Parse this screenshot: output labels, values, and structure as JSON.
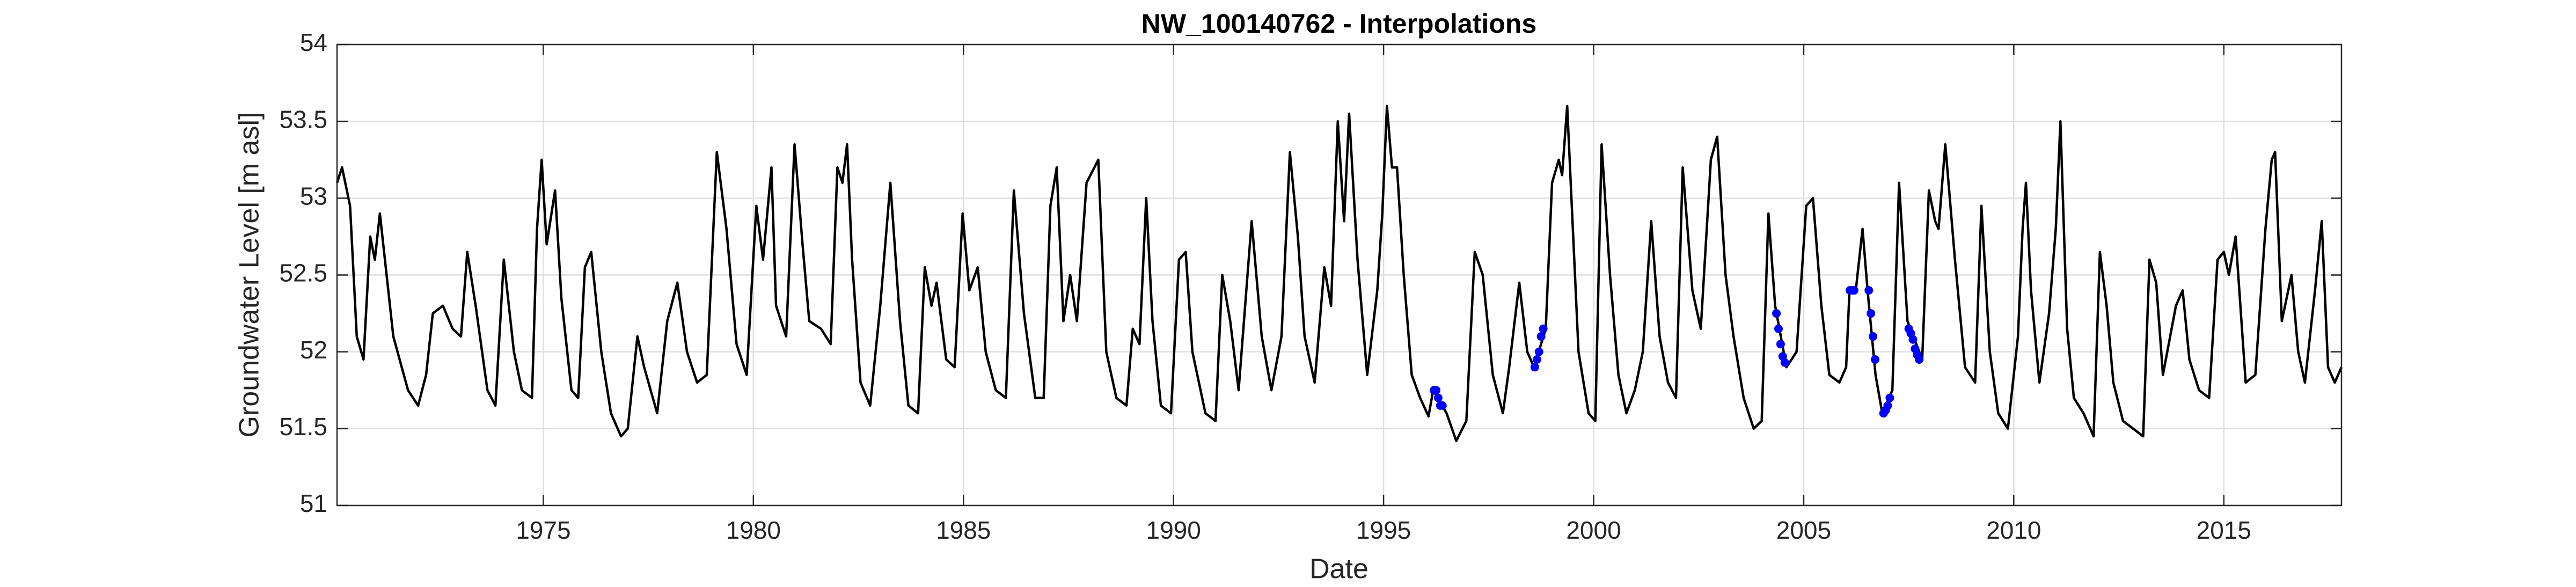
{
  "chart_data": {
    "type": "line",
    "title": "NW_100140762 - Interpolations",
    "xlabel": "Date",
    "ylabel": "Groundwater Level [m asl]",
    "xlim": [
      1970.09,
      2017.8
    ],
    "xticks": [
      1975,
      1980,
      1985,
      1990,
      1995,
      2000,
      2005,
      2010,
      2015
    ],
    "ylim": [
      51,
      54
    ],
    "yticks": [
      51,
      51.5,
      52,
      52.5,
      53,
      53.5,
      54
    ],
    "grid": true,
    "series": [
      {
        "color": "#000000",
        "marker": "none",
        "x": [
          1970.09,
          1970.21,
          1970.4,
          1970.56,
          1970.72,
          1970.88,
          1970.99,
          1971.11,
          1971.43,
          1971.78,
          1972.02,
          1972.21,
          1972.37,
          1972.61,
          1972.84,
          1973.04,
          1973.19,
          1973.39,
          1973.67,
          1973.86,
          1974.06,
          1974.3,
          1974.49,
          1974.73,
          1974.85,
          1974.96,
          1975.08,
          1975.28,
          1975.43,
          1975.67,
          1975.83,
          1975.99,
          1976.14,
          1976.38,
          1976.61,
          1976.85,
          1977.01,
          1977.24,
          1977.4,
          1977.71,
          1977.95,
          1978.19,
          1978.42,
          1978.66,
          1978.89,
          1979.13,
          1979.36,
          1979.6,
          1979.84,
          1980.07,
          1980.23,
          1980.43,
          1980.54,
          1980.78,
          1980.98,
          1981.17,
          1981.33,
          1981.61,
          1981.84,
          1982.0,
          1982.12,
          1982.23,
          1982.35,
          1982.55,
          1982.78,
          1983.02,
          1983.26,
          1983.49,
          1983.69,
          1983.92,
          1984.08,
          1984.24,
          1984.36,
          1984.59,
          1984.79,
          1984.98,
          1985.14,
          1985.34,
          1985.53,
          1985.77,
          1986.01,
          1986.2,
          1986.44,
          1986.71,
          1986.91,
          1987.07,
          1987.22,
          1987.38,
          1987.54,
          1987.7,
          1987.93,
          1988.21,
          1988.4,
          1988.64,
          1988.88,
          1989.03,
          1989.19,
          1989.35,
          1989.5,
          1989.7,
          1989.94,
          1990.13,
          1990.29,
          1990.45,
          1990.76,
          1991.0,
          1991.16,
          1991.35,
          1991.55,
          1991.86,
          1992.1,
          1992.33,
          1992.57,
          1992.77,
          1992.96,
          1993.12,
          1993.36,
          1993.59,
          1993.75,
          1993.91,
          1994.06,
          1994.18,
          1994.38,
          1994.61,
          1994.85,
          1994.97,
          1995.08,
          1995.2,
          1995.32,
          1995.48,
          1995.67,
          1995.87,
          1996.07,
          1996.18,
          1996.5,
          1996.73,
          1996.97,
          1997.17,
          1997.36,
          1997.6,
          1997.84,
          1997.99,
          1998.23,
          1998.42,
          1998.58,
          1998.86,
          1999.01,
          1999.17,
          1999.25,
          1999.37,
          1999.48,
          1999.64,
          1999.88,
          2000.04,
          2000.19,
          2000.39,
          2000.59,
          2000.78,
          2000.98,
          2001.17,
          2001.37,
          2001.57,
          2001.77,
          2001.96,
          2002.12,
          2002.35,
          2002.55,
          2002.79,
          2002.94,
          2003.14,
          2003.33,
          2003.57,
          2003.81,
          2004.0,
          2004.16,
          2004.32,
          2004.59,
          2004.83,
          2005.06,
          2005.22,
          2005.42,
          2005.61,
          2005.85,
          2006.01,
          2006.09,
          2006.24,
          2006.4,
          2006.52,
          2006.71,
          2006.87,
          2007.11,
          2007.27,
          2007.47,
          2007.82,
          2007.98,
          2008.13,
          2008.21,
          2008.37,
          2008.6,
          2008.84,
          2009.08,
          2009.23,
          2009.43,
          2009.63,
          2009.86,
          2010.1,
          2010.21,
          2010.29,
          2010.41,
          2010.61,
          2010.84,
          2011.0,
          2011.11,
          2011.27,
          2011.43,
          2011.66,
          2011.9,
          2012.05,
          2012.21,
          2012.37,
          2012.6,
          2012.84,
          2013.08,
          2013.23,
          2013.39,
          2013.55,
          2013.86,
          2014.02,
          2014.18,
          2014.41,
          2014.65,
          2014.85,
          2015.0,
          2015.12,
          2015.28,
          2015.52,
          2015.75,
          2015.99,
          2016.14,
          2016.22,
          2016.38,
          2016.61,
          2016.77,
          2016.93,
          2017.17,
          2017.33,
          2017.48,
          2017.64,
          2017.8
        ],
        "values": [
          53.1,
          53.2,
          52.95,
          52.1,
          51.95,
          52.75,
          52.6,
          52.9,
          52.1,
          51.75,
          51.65,
          51.85,
          52.25,
          52.3,
          52.15,
          52.1,
          52.65,
          52.3,
          51.75,
          51.65,
          52.6,
          52.0,
          51.75,
          51.7,
          52.8,
          53.25,
          52.7,
          53.05,
          52.35,
          51.75,
          51.7,
          52.55,
          52.65,
          52.0,
          51.6,
          51.45,
          51.5,
          52.1,
          51.9,
          51.6,
          52.2,
          52.45,
          52.0,
          51.8,
          51.85,
          53.3,
          52.8,
          52.05,
          51.85,
          52.95,
          52.6,
          53.2,
          52.3,
          52.1,
          53.35,
          52.7,
          52.2,
          52.15,
          52.05,
          53.2,
          53.1,
          53.35,
          52.6,
          51.8,
          51.65,
          52.3,
          53.1,
          52.2,
          51.65,
          51.6,
          52.55,
          52.3,
          52.45,
          51.95,
          51.9,
          52.9,
          52.4,
          52.55,
          52.0,
          51.75,
          51.7,
          53.05,
          52.25,
          51.7,
          51.7,
          52.95,
          53.2,
          52.2,
          52.5,
          52.2,
          53.1,
          53.25,
          52.0,
          51.7,
          51.65,
          52.15,
          52.05,
          53.0,
          52.2,
          51.65,
          51.6,
          52.6,
          52.65,
          52.0,
          51.6,
          51.55,
          52.5,
          52.2,
          51.75,
          52.85,
          52.1,
          51.75,
          52.1,
          53.3,
          52.75,
          52.1,
          51.8,
          52.55,
          52.3,
          53.5,
          52.85,
          53.55,
          52.6,
          51.85,
          52.4,
          52.9,
          53.6,
          53.2,
          53.2,
          52.5,
          51.85,
          51.7,
          51.58,
          51.75,
          51.6,
          51.42,
          51.55,
          52.65,
          52.5,
          51.85,
          51.6,
          51.9,
          52.45,
          52.0,
          51.9,
          52.15,
          53.1,
          53.25,
          53.15,
          53.6,
          52.95,
          52.0,
          51.6,
          51.55,
          53.35,
          52.5,
          51.85,
          51.6,
          51.75,
          52.0,
          52.85,
          52.1,
          51.8,
          51.7,
          53.2,
          52.4,
          52.15,
          53.25,
          53.4,
          52.5,
          52.1,
          51.7,
          51.5,
          51.55,
          52.9,
          52.3,
          51.9,
          52.0,
          52.95,
          53.0,
          52.3,
          51.85,
          51.8,
          51.9,
          52.4,
          52.4,
          52.8,
          52.4,
          51.85,
          51.6,
          51.75,
          53.1,
          52.2,
          51.95,
          53.05,
          52.85,
          52.8,
          53.35,
          52.6,
          51.9,
          51.8,
          52.95,
          52.0,
          51.6,
          51.5,
          52.1,
          52.8,
          53.1,
          52.4,
          51.8,
          52.25,
          52.8,
          53.5,
          52.15,
          51.7,
          51.6,
          51.45,
          52.65,
          52.3,
          51.8,
          51.55,
          51.5,
          51.45,
          52.6,
          52.45,
          51.85,
          52.3,
          52.4,
          51.95,
          51.75,
          51.7,
          52.6,
          52.65,
          52.5,
          52.75,
          51.8,
          51.85,
          52.8,
          53.25,
          53.3,
          52.2,
          52.5,
          52.0,
          51.8,
          52.4,
          52.85,
          51.9,
          51.8,
          51.9
        ]
      },
      {
        "color": "#0000ff",
        "marker": "dot",
        "x": [
          1996.2,
          1996.25,
          1996.3,
          1996.35,
          1996.4,
          1998.6,
          1998.65,
          1998.7,
          1998.75,
          1998.8,
          2004.35,
          2004.4,
          2004.45,
          2004.5,
          2004.55,
          2006.1,
          2006.15,
          2006.2,
          2006.55,
          2006.6,
          2006.65,
          2006.7,
          2006.9,
          2006.95,
          2007.0,
          2007.05,
          2007.5,
          2007.55,
          2007.6,
          2007.65,
          2007.7,
          2007.75
        ],
        "values": [
          51.75,
          51.75,
          51.7,
          51.65,
          51.65,
          51.9,
          51.95,
          52.0,
          52.1,
          52.15,
          52.25,
          52.15,
          52.05,
          51.97,
          51.93,
          52.4,
          52.4,
          52.4,
          52.4,
          52.25,
          52.1,
          51.95,
          51.6,
          51.62,
          51.65,
          51.7,
          52.15,
          52.12,
          52.08,
          52.02,
          51.98,
          51.95
        ]
      }
    ]
  }
}
